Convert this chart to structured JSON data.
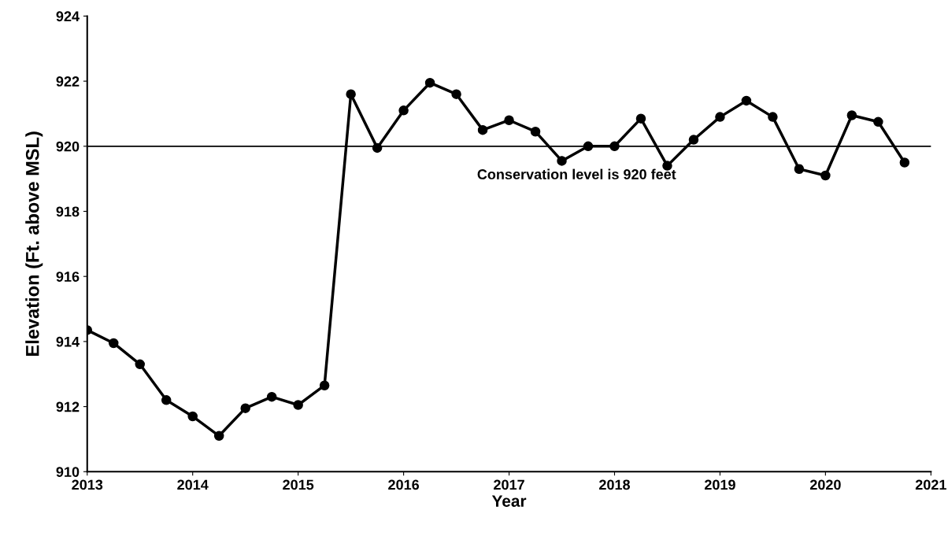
{
  "chart_data": {
    "type": "line",
    "xlabel": "Year",
    "ylabel": "Elevation (Ft. above MSL)",
    "x": [
      2013,
      2013.25,
      2013.5,
      2013.75,
      2014,
      2014.25,
      2014.5,
      2014.75,
      2015,
      2015.25,
      2015.5,
      2015.75,
      2016,
      2016.25,
      2016.5,
      2016.75,
      2017,
      2017.25,
      2017.5,
      2017.75,
      2018,
      2018.25,
      2018.5,
      2018.75,
      2019,
      2019.25,
      2019.5,
      2019.75,
      2020,
      2020.25,
      2020.5,
      2020.75
    ],
    "series": [
      {
        "color": "#000000",
        "values": [
          914.35,
          913.95,
          913.3,
          912.2,
          911.7,
          911.1,
          911.95,
          912.3,
          912.05,
          912.65,
          921.6,
          919.95,
          921.1,
          921.95,
          921.6,
          920.5,
          920.8,
          920.45,
          919.55,
          920.0,
          920.0,
          920.85,
          919.4,
          920.2,
          920.9,
          921.4,
          920.9,
          919.3,
          919.1,
          920.95,
          920.75,
          919.5
        ]
      }
    ],
    "xlim": [
      2013,
      2021
    ],
    "xticks": [
      2013,
      2014,
      2015,
      2016,
      2017,
      2018,
      2019,
      2020,
      2021
    ],
    "ylim": [
      910,
      924
    ],
    "yticks": [
      910,
      912,
      914,
      916,
      918,
      920,
      922,
      924
    ],
    "ref_lines": [
      {
        "axis": "y",
        "value": 920,
        "label": "Conservation level is 920 feet",
        "color": "#000000",
        "line_style": "solid"
      }
    ],
    "marker": "circle",
    "line_style": "solid",
    "grid": false,
    "legend": false
  }
}
